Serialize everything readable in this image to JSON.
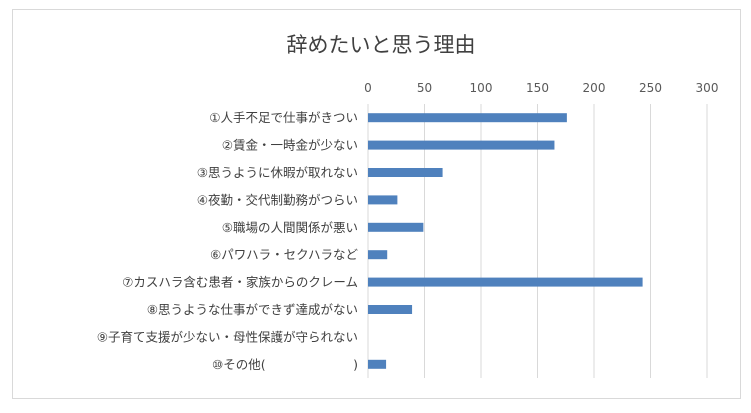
{
  "chart_data": {
    "type": "bar",
    "orientation": "horizontal",
    "title": "辞めたいと思う理由",
    "xlabel": "",
    "ylabel": "",
    "xlim": [
      0,
      300
    ],
    "ticks": [
      "0",
      "50",
      "100",
      "150",
      "200",
      "250",
      "300"
    ],
    "tick_values": [
      0,
      50,
      100,
      150,
      200,
      250,
      300
    ],
    "grid": true,
    "axis_position": "top",
    "bar_color": "#4f81bd",
    "categories": [
      "①人手不足で仕事がきつい",
      "②賃金・一時金が少ない",
      "③思うように休暇が取れない",
      "④夜勤・交代制勤務がつらい",
      "⑤職場の人間関係が悪い",
      "⑥パワハラ・セクハラなど",
      "⑦カスハラ含む患者・家族からのクレーム",
      "⑧思うような仕事ができず達成がない",
      "⑨子育て支援が少ない・母性保護が守られない",
      "⑩その他(　　　　　　　)"
    ],
    "values": [
      176,
      165,
      66,
      26,
      49,
      17,
      243,
      39,
      0,
      16
    ]
  }
}
